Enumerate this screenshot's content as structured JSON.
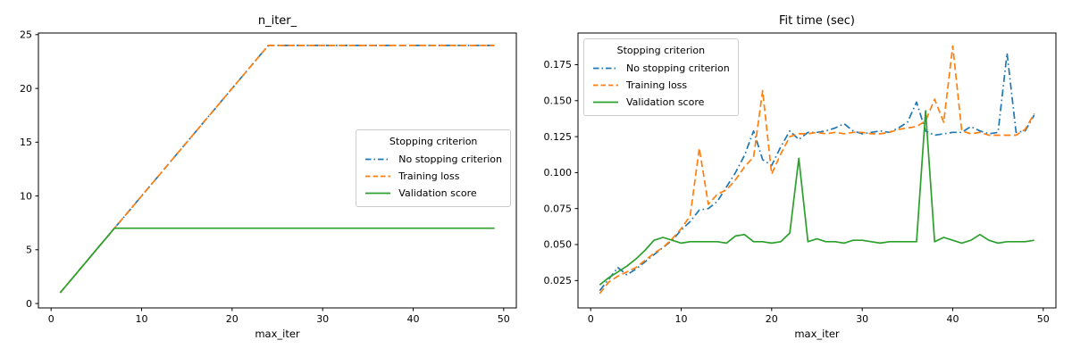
{
  "figure": {
    "background": "#ffffff",
    "axis_color": "#000000",
    "legend_border_color": "#cccccc"
  },
  "legend": {
    "title": "Stopping criterion",
    "entries": [
      "No stopping criterion",
      "Training loss",
      "Validation score"
    ]
  },
  "chart_data": [
    {
      "type": "line",
      "title": "n_iter_",
      "xlabel": "max_iter",
      "ylabel": "",
      "xlim": [
        -1.4,
        51.4
      ],
      "ylim": [
        -0.41,
        25.15
      ],
      "xticks": [
        0,
        10,
        20,
        30,
        40,
        50
      ],
      "xtick_labels": [
        "0",
        "10",
        "20",
        "30",
        "40",
        "50"
      ],
      "yticks": [
        0,
        5,
        10,
        15,
        20,
        25
      ],
      "ytick_labels": [
        "0",
        "5",
        "10",
        "15",
        "20",
        "25"
      ],
      "grid": false,
      "legend_title": "Stopping criterion",
      "legend_loc": "center right",
      "x": [
        1,
        2,
        3,
        4,
        5,
        6,
        7,
        8,
        9,
        10,
        11,
        12,
        13,
        14,
        15,
        16,
        17,
        18,
        19,
        20,
        21,
        22,
        23,
        24,
        25,
        26,
        27,
        28,
        29,
        30,
        31,
        32,
        33,
        34,
        35,
        36,
        37,
        38,
        39,
        40,
        41,
        42,
        43,
        44,
        45,
        46,
        47,
        48,
        49
      ],
      "series": [
        {
          "name": "No stopping criterion",
          "color": "#1f77b4",
          "linestyle": "dashdot",
          "values": [
            1,
            2,
            3,
            4,
            5,
            6,
            7,
            8,
            9,
            10,
            11,
            12,
            13,
            14,
            15,
            16,
            17,
            18,
            19,
            20,
            21,
            22,
            23,
            24,
            24,
            24,
            24,
            24,
            24,
            24,
            24,
            24,
            24,
            24,
            24,
            24,
            24,
            24,
            24,
            24,
            24,
            24,
            24,
            24,
            24,
            24,
            24,
            24,
            24
          ]
        },
        {
          "name": "Training loss",
          "color": "#ff7f0e",
          "linestyle": "dashed",
          "values": [
            1,
            2,
            3,
            4,
            5,
            6,
            7,
            8,
            9,
            10,
            11,
            12,
            13,
            14,
            15,
            16,
            17,
            18,
            19,
            20,
            21,
            22,
            23,
            24,
            24,
            24,
            24,
            24,
            24,
            24,
            24,
            24,
            24,
            24,
            24,
            24,
            24,
            24,
            24,
            24,
            24,
            24,
            24,
            24,
            24,
            24,
            24,
            24,
            24
          ]
        },
        {
          "name": "Validation score",
          "color": "#2ca02c",
          "linestyle": "solid",
          "values": [
            1,
            2,
            3,
            4,
            5,
            6,
            7,
            7,
            7,
            7,
            7,
            7,
            7,
            7,
            7,
            7,
            7,
            7,
            7,
            7,
            7,
            7,
            7,
            7,
            7,
            7,
            7,
            7,
            7,
            7,
            7,
            7,
            7,
            7,
            7,
            7,
            7,
            7,
            7,
            7,
            7,
            7,
            7,
            7,
            7,
            7,
            7,
            7,
            7
          ]
        }
      ]
    },
    {
      "type": "line",
      "title": "Fit time (sec)",
      "xlabel": "max_iter",
      "ylabel": "",
      "xlim": [
        -1.4,
        51.4
      ],
      "ylim": [
        0.006,
        0.197
      ],
      "xticks": [
        0,
        10,
        20,
        30,
        40,
        50
      ],
      "xtick_labels": [
        "0",
        "10",
        "20",
        "30",
        "40",
        "50"
      ],
      "yticks": [
        0.025,
        0.05,
        0.075,
        0.1,
        0.125,
        0.15,
        0.175
      ],
      "ytick_labels": [
        "0.025",
        "0.050",
        "0.075",
        "0.100",
        "0.125",
        "0.150",
        "0.175"
      ],
      "grid": false,
      "legend_title": "Stopping criterion",
      "legend_loc": "upper left",
      "x": [
        1,
        2,
        3,
        4,
        5,
        6,
        7,
        8,
        9,
        10,
        11,
        12,
        13,
        14,
        15,
        16,
        17,
        18,
        19,
        20,
        21,
        22,
        23,
        24,
        25,
        26,
        27,
        28,
        29,
        30,
        31,
        32,
        33,
        34,
        35,
        36,
        37,
        38,
        39,
        40,
        41,
        42,
        43,
        44,
        45,
        46,
        47,
        48,
        49
      ],
      "series": [
        {
          "name": "No stopping criterion",
          "color": "#1f77b4",
          "linestyle": "dashdot",
          "values": [
            0.018,
            0.026,
            0.034,
            0.029,
            0.033,
            0.038,
            0.043,
            0.048,
            0.053,
            0.06,
            0.066,
            0.074,
            0.075,
            0.08,
            0.09,
            0.1,
            0.112,
            0.129,
            0.109,
            0.105,
            0.118,
            0.129,
            0.123,
            0.128,
            0.128,
            0.129,
            0.131,
            0.134,
            0.129,
            0.127,
            0.128,
            0.129,
            0.128,
            0.131,
            0.135,
            0.149,
            0.129,
            0.126,
            0.127,
            0.128,
            0.128,
            0.132,
            0.129,
            0.127,
            0.128,
            0.183,
            0.128,
            0.129,
            0.14
          ]
        },
        {
          "name": "Training loss",
          "color": "#ff7f0e",
          "linestyle": "dashed",
          "values": [
            0.016,
            0.024,
            0.028,
            0.031,
            0.034,
            0.039,
            0.044,
            0.048,
            0.054,
            0.061,
            0.07,
            0.117,
            0.078,
            0.085,
            0.088,
            0.095,
            0.104,
            0.111,
            0.157,
            0.099,
            0.113,
            0.125,
            0.127,
            0.127,
            0.128,
            0.127,
            0.128,
            0.127,
            0.128,
            0.128,
            0.127,
            0.127,
            0.128,
            0.13,
            0.131,
            0.132,
            0.136,
            0.151,
            0.135,
            0.188,
            0.129,
            0.127,
            0.128,
            0.126,
            0.126,
            0.126,
            0.126,
            0.13,
            0.141
          ]
        },
        {
          "name": "Validation score",
          "color": "#2ca02c",
          "linestyle": "solid",
          "values": [
            0.022,
            0.027,
            0.031,
            0.035,
            0.04,
            0.046,
            0.053,
            0.055,
            0.053,
            0.051,
            0.052,
            0.052,
            0.052,
            0.052,
            0.051,
            0.056,
            0.057,
            0.052,
            0.052,
            0.051,
            0.052,
            0.058,
            0.11,
            0.052,
            0.054,
            0.052,
            0.052,
            0.051,
            0.053,
            0.053,
            0.052,
            0.051,
            0.052,
            0.052,
            0.052,
            0.052,
            0.143,
            0.052,
            0.055,
            0.053,
            0.051,
            0.053,
            0.057,
            0.053,
            0.051,
            0.052,
            0.052,
            0.052,
            0.053
          ]
        }
      ]
    }
  ]
}
